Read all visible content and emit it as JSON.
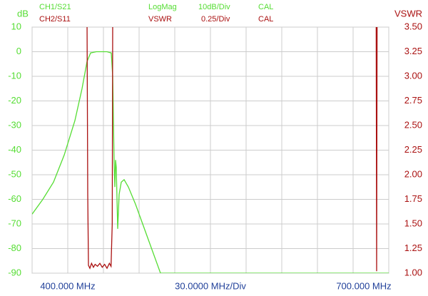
{
  "chart_data": {
    "type": "line",
    "ylabel": "dB",
    "y2label": "VSWR",
    "xlim": [
      400,
      700
    ],
    "ylim": [
      -90,
      10
    ],
    "y2lim": [
      1.0,
      3.5
    ],
    "xgrid": [
      400,
      430,
      460,
      490,
      520,
      550,
      580,
      610,
      640,
      670,
      700
    ],
    "xticks": [
      {
        "value": 400,
        "label": "400.000 MHz"
      },
      {
        "value": 700,
        "label": "700.000 MHz"
      }
    ],
    "x_scale_label": "30.0000 MHz/Div",
    "yticks": [
      10,
      0,
      -10,
      -20,
      -30,
      -40,
      -50,
      -60,
      -70,
      -80,
      -90
    ],
    "y2ticks": [
      {
        "value": 3.5,
        "label": "3.50"
      },
      {
        "value": 3.25,
        "label": "3.25"
      },
      {
        "value": 3.0,
        "label": "3.00"
      },
      {
        "value": 2.75,
        "label": "2.75"
      },
      {
        "value": 2.5,
        "label": "2.50"
      },
      {
        "value": 2.25,
        "label": "2.25"
      },
      {
        "value": 2.0,
        "label": "2.00"
      },
      {
        "value": 1.75,
        "label": "1.75"
      },
      {
        "value": 1.5,
        "label": "1.50"
      },
      {
        "value": 1.25,
        "label": "1.25"
      },
      {
        "value": 1.0,
        "label": "1.00"
      }
    ],
    "grid": true,
    "series": [
      {
        "name": "CH1/S21",
        "format": "LogMag",
        "scale": "10dB/Div",
        "status": "CAL",
        "color": "#55dd33",
        "axis": "y",
        "x": [
          400,
          409,
          418,
          427,
          436,
          442,
          446.2,
          449.2,
          454,
          463,
          466.6,
          467.8,
          469,
          469.6,
          470.2,
          470.8,
          472,
          473.2,
          475,
          477.4,
          481,
          487,
          493,
          499,
          505,
          508,
          700
        ],
        "values": [
          -66,
          -60,
          -53,
          -42,
          -28,
          -15,
          -4,
          -0.5,
          0,
          0,
          -0.5,
          -10,
          -45,
          -55,
          -44,
          -47,
          -72,
          -58,
          -53,
          -52,
          -55,
          -62,
          -70,
          -78,
          -86,
          -90,
          -90
        ]
      },
      {
        "name": "CH2/S11",
        "format": "VSWR",
        "scale": "0.25/Div",
        "status": "CAL",
        "color": "#aa1111",
        "axis": "y2",
        "x": [
          446.2,
          446.8,
          447.4,
          448.6,
          450,
          451.6,
          453,
          455,
          457,
          459,
          461,
          463,
          465,
          466.4,
          467.4,
          467.8,
          689.4,
          689.8,
          690.2
        ],
        "values": [
          3.6,
          1.8,
          1.08,
          1.05,
          1.1,
          1.06,
          1.09,
          1.07,
          1.1,
          1.06,
          1.09,
          1.05,
          1.1,
          1.07,
          1.5,
          3.6,
          3.6,
          1.02,
          3.6
        ]
      }
    ]
  }
}
